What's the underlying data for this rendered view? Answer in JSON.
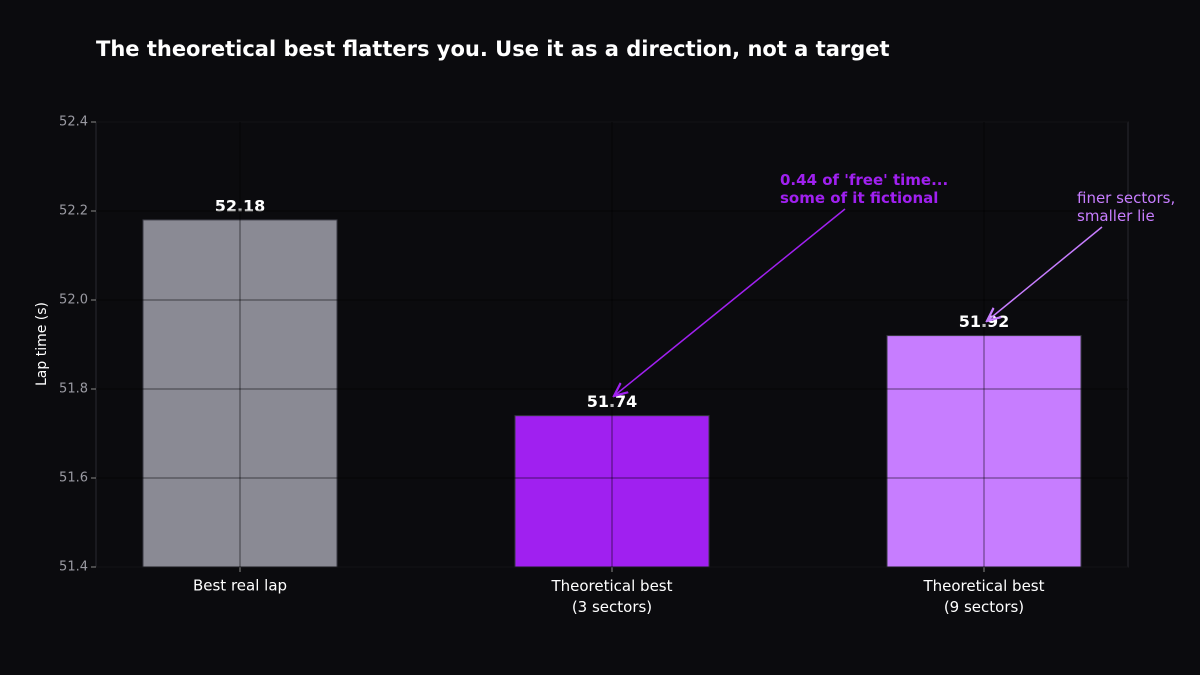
{
  "chart_data": {
    "type": "bar",
    "title": "The theoretical best flatters you. Use it as a direction, not a target",
    "y_label": "Lap time (s)",
    "categories": [
      "Best real lap",
      "Theoretical best\n(3 sectors)",
      "Theoretical best\n(9 sectors)"
    ],
    "values": [
      52.18,
      51.74,
      51.92
    ],
    "colors": [
      "#8a8a94",
      "#a020f0",
      "#c77dff"
    ],
    "ylim": [
      51.4,
      52.4
    ],
    "yticks": [
      51.4,
      51.6,
      51.8,
      {
        "value": 52,
        "label": "52.0"
      },
      52.2,
      52.4
    ],
    "grid": true,
    "annotations": [
      {
        "text": "0.44 of 'free' time...\nsome of it fictional",
        "color": "#a020f0"
      },
      {
        "text": "finer sectors,\nsmaller lie",
        "color": "#c77dff"
      }
    ]
  }
}
